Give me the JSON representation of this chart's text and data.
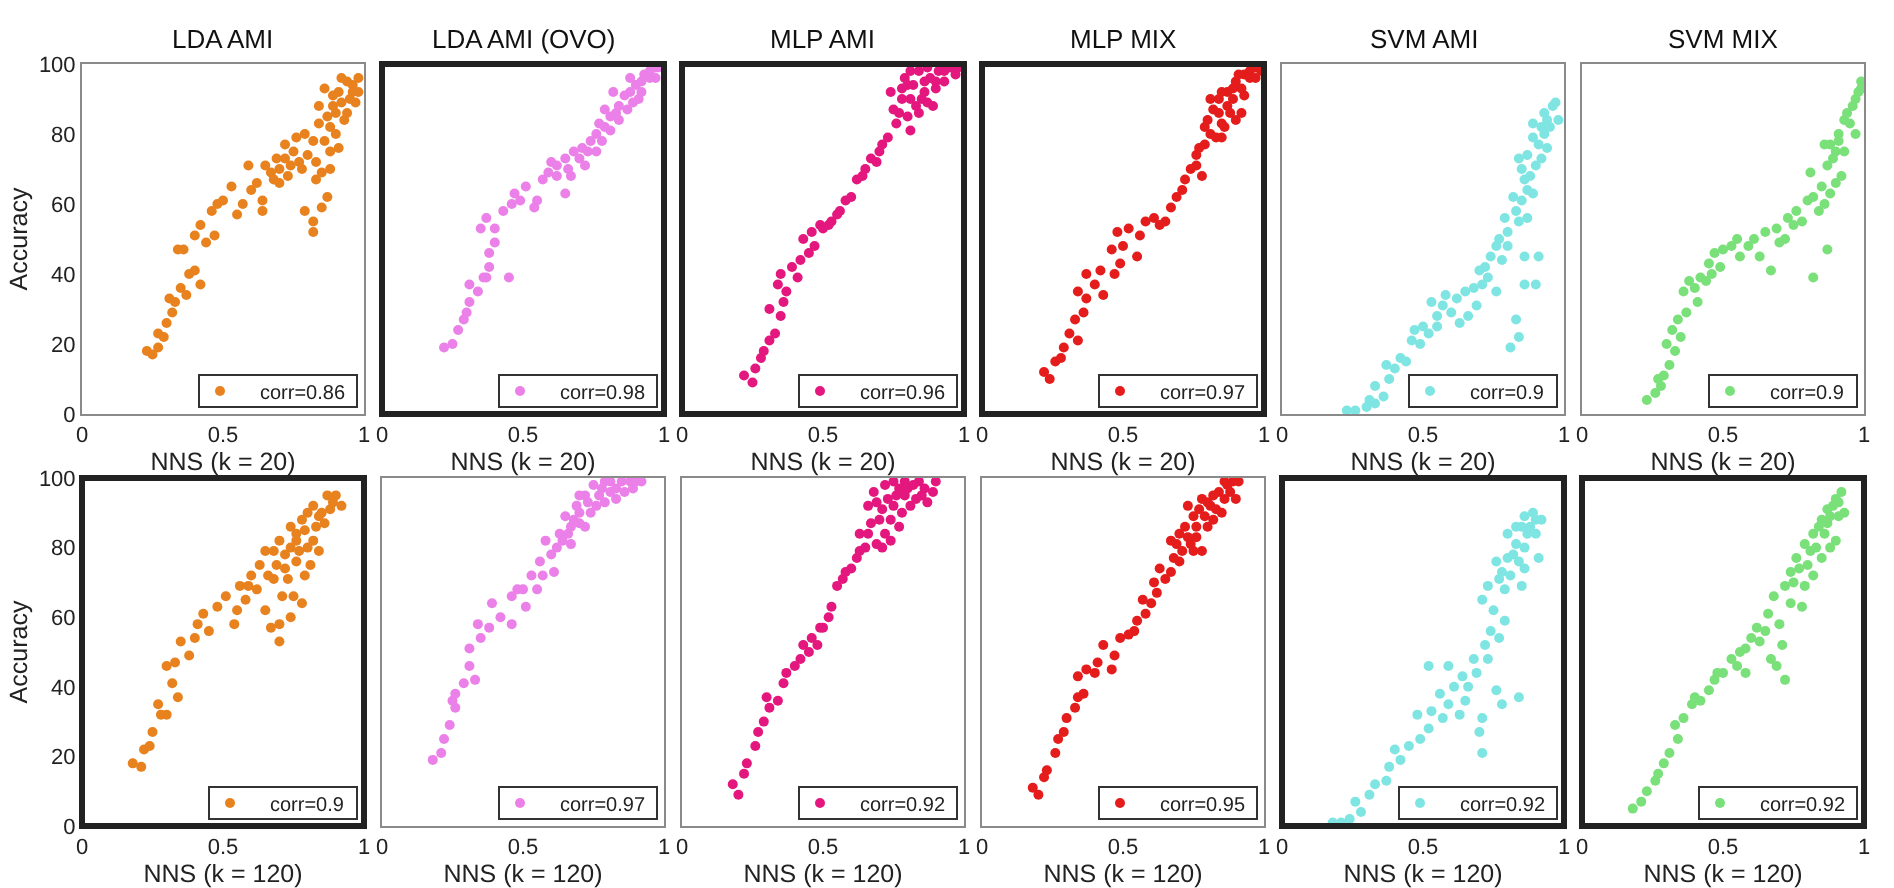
{
  "chart_data": [
    {
      "type": "scatter",
      "title": "LDA AMI",
      "xlabel": "NNS (k = 20)",
      "ylabel": "Accuracy",
      "xlim": [
        0,
        1
      ],
      "ylim": [
        0,
        100
      ],
      "xticks": [
        0,
        0.5,
        1
      ],
      "yticks": [
        0,
        20,
        40,
        60,
        80,
        100
      ],
      "legend": "bottom right",
      "marker": "circle",
      "series": [
        {
          "name": "corr=0.86",
          "color": "#e8821e",
          "x": [
            0.23,
            0.25,
            0.27,
            0.27,
            0.29,
            0.3,
            0.32,
            0.31,
            0.33,
            0.35,
            0.37,
            0.38,
            0.4,
            0.42,
            0.34,
            0.36,
            0.4,
            0.42,
            0.44,
            0.47,
            0.46,
            0.48,
            0.5,
            0.53,
            0.55,
            0.57,
            0.59,
            0.6,
            0.64,
            0.64,
            0.62,
            0.67,
            0.68,
            0.69,
            0.7,
            0.72,
            0.72,
            0.75,
            0.76,
            0.77,
            0.78,
            0.79,
            0.82,
            0.82,
            0.85,
            0.87,
            0.85,
            0.88,
            0.79,
            0.82,
            0.84,
            0.87,
            0.89,
            0.9,
            0.91,
            0.94,
            0.96,
            0.98,
            0.97,
            0.94,
            0.92,
            0.8,
            0.83,
            0.86,
            0.88,
            0.9,
            0.92,
            0.93,
            0.95,
            0.96,
            0.84,
            0.86,
            0.89,
            0.91,
            0.83,
            0.88,
            0.74,
            0.7,
            0.65,
            0.73,
            0.98
          ],
          "values": [
            18,
            17,
            19,
            23,
            22,
            26,
            29,
            33,
            32,
            36,
            34,
            40,
            41,
            37,
            47,
            47,
            51,
            54,
            49,
            51,
            58,
            60,
            61,
            65,
            57,
            60,
            71,
            64,
            61,
            58,
            66,
            69,
            67,
            73,
            70,
            73,
            77,
            75,
            79,
            72,
            70,
            58,
            55,
            52,
            59,
            62,
            69,
            75,
            80,
            78,
            83,
            85,
            88,
            80,
            92,
            95,
            94,
            92,
            89,
            86,
            96,
            74,
            72,
            78,
            82,
            86,
            89,
            84,
            90,
            92,
            88,
            93,
            91,
            76,
            67,
            70,
            71,
            66,
            71,
            68,
            96
          ]
        }
      ]
    },
    {
      "type": "scatter",
      "title": "LDA AMI (OVO)",
      "xlabel": "NNS (k = 20)",
      "xlim": [
        0,
        1
      ],
      "ylim": [
        0,
        100
      ],
      "xticks": [
        0,
        0.5,
        1
      ],
      "tick_labels": "x",
      "legend": "bottom right",
      "marker": "circle",
      "series": [
        {
          "name": "corr=0.98",
          "color": "#ea80e8",
          "x": [
            0.22,
            0.25,
            0.27,
            0.29,
            0.3,
            0.31,
            0.31,
            0.34,
            0.36,
            0.37,
            0.38,
            0.38,
            0.4,
            0.45,
            0.35,
            0.37,
            0.4,
            0.43,
            0.46,
            0.47,
            0.49,
            0.51,
            0.54,
            0.55,
            0.57,
            0.59,
            0.6,
            0.65,
            0.62,
            0.65,
            0.68,
            0.71,
            0.72,
            0.74,
            0.76,
            0.76,
            0.79,
            0.79,
            0.81,
            0.82,
            0.84,
            0.86,
            0.87,
            0.9,
            0.91,
            0.93,
            0.97,
            0.98,
            0.62,
            0.66,
            0.7,
            0.73,
            0.78,
            0.81,
            0.83,
            0.88,
            0.89,
            0.92,
            0.95,
            0.95,
            0.97,
            0.88,
            0.92,
            0.67,
            0.77,
            0.84
          ],
          "values": [
            19,
            20,
            24,
            27,
            29,
            32,
            37,
            35,
            39,
            39,
            42,
            46,
            49,
            39,
            53,
            56,
            53,
            58,
            60,
            63,
            61,
            65,
            59,
            61,
            67,
            69,
            72,
            63,
            68,
            73,
            75,
            76,
            71,
            78,
            75,
            80,
            82,
            87,
            85,
            92,
            88,
            91,
            87,
            94,
            90,
            97,
            99,
            99,
            71,
            70,
            73,
            75,
            78,
            81,
            86,
            92,
            89,
            95,
            96,
            98,
            96,
            96,
            92,
            68,
            83,
            84
          ]
        }
      ]
    },
    {
      "type": "scatter",
      "title": "MLP AMI",
      "xlabel": "NNS (k = 20)",
      "xlim": [
        0,
        1
      ],
      "ylim": [
        0,
        100
      ],
      "xticks": [
        0,
        0.5,
        1
      ],
      "tick_labels": "x",
      "legend": "bottom right",
      "marker": "circle",
      "series": [
        {
          "name": "corr=0.96",
          "color": "#e3177e",
          "x": [
            0.22,
            0.25,
            0.26,
            0.28,
            0.29,
            0.31,
            0.33,
            0.31,
            0.35,
            0.36,
            0.34,
            0.37,
            0.35,
            0.39,
            0.41,
            0.42,
            0.45,
            0.43,
            0.47,
            0.46,
            0.49,
            0.52,
            0.53,
            0.56,
            0.58,
            0.6,
            0.62,
            0.65,
            0.67,
            0.71,
            0.73,
            0.76,
            0.78,
            0.74,
            0.77,
            0.8,
            0.84,
            0.81,
            0.86,
            0.88,
            0.91,
            0.95,
            0.98,
            0.93,
            0.81,
            0.85,
            0.89,
            0.79,
            0.84,
            0.75,
            0.78,
            0.81,
            0.82,
            0.83,
            0.86,
            0.87,
            0.9,
            0.9,
            0.93,
            0.97,
            0.87,
            0.8,
            0.7,
            0.64,
            0.69,
            0.55,
            0.5
          ],
          "values": [
            11,
            9,
            13,
            16,
            18,
            21,
            23,
            30,
            28,
            32,
            37,
            35,
            40,
            42,
            39,
            44,
            46,
            50,
            48,
            52,
            54,
            54,
            55,
            58,
            61,
            62,
            67,
            70,
            73,
            77,
            79,
            83,
            90,
            92,
            86,
            85,
            86,
            90,
            92,
            96,
            98,
            99,
            99,
            95,
            81,
            90,
            88,
            96,
            98,
            87,
            93,
            98,
            94,
            88,
            95,
            89,
            93,
            95,
            98,
            97,
            99,
            94,
            75,
            68,
            72,
            57,
            53
          ]
        }
      ]
    },
    {
      "type": "scatter",
      "title": "MLP MIX",
      "xlabel": "NNS (k = 20)",
      "xlim": [
        0,
        1
      ],
      "ylim": [
        0,
        100
      ],
      "xticks": [
        0,
        0.5,
        1
      ],
      "tick_labels": "x",
      "legend": "bottom right",
      "marker": "circle",
      "series": [
        {
          "name": "corr=0.97",
          "color": "#e41c1c",
          "x": [
            0.22,
            0.24,
            0.26,
            0.28,
            0.29,
            0.31,
            0.34,
            0.33,
            0.36,
            0.34,
            0.37,
            0.4,
            0.43,
            0.37,
            0.42,
            0.47,
            0.46,
            0.49,
            0.5,
            0.55,
            0.56,
            0.48,
            0.52,
            0.61,
            0.65,
            0.67,
            0.69,
            0.72,
            0.74,
            0.78,
            0.76,
            0.79,
            0.81,
            0.85,
            0.79,
            0.84,
            0.87,
            0.81,
            0.87,
            0.9,
            0.93,
            0.97,
            0.86,
            0.92,
            0.93,
            0.9,
            0.8,
            0.82,
            0.84,
            0.85,
            0.89,
            0.89,
            0.92,
            0.91,
            0.95,
            0.95,
            0.97,
            0.99,
            0.88,
            0.83,
            0.85,
            0.76,
            0.77,
            0.71,
            0.58,
            0.63
          ],
          "values": [
            12,
            10,
            15,
            16,
            19,
            23,
            21,
            27,
            29,
            35,
            33,
            37,
            34,
            40,
            41,
            40,
            47,
            43,
            48,
            45,
            51,
            52,
            53,
            56,
            55,
            59,
            62,
            67,
            70,
            68,
            74,
            77,
            80,
            79,
            82,
            86,
            88,
            90,
            92,
            95,
            97,
            99,
            82,
            86,
            91,
            84,
            84,
            87,
            90,
            92,
            93,
            90,
            93,
            97,
            98,
            96,
            96,
            98,
            86,
            79,
            83,
            71,
            76,
            64,
            55,
            54
          ]
        }
      ]
    },
    {
      "type": "scatter",
      "title": "SVM AMI",
      "xlabel": "NNS (k = 20)",
      "xlim": [
        0,
        1
      ],
      "ylim": [
        0,
        100
      ],
      "xticks": [
        0,
        0.5,
        1
      ],
      "tick_labels": "x",
      "legend": "bottom right",
      "marker": "circle",
      "series": [
        {
          "name": "corr=0.9",
          "color": "#7fe5e2",
          "x": [
            0.23,
            0.26,
            0.3,
            0.33,
            0.31,
            0.36,
            0.33,
            0.38,
            0.37,
            0.4,
            0.42,
            0.44,
            0.46,
            0.49,
            0.53,
            0.57,
            0.6,
            0.63,
            0.66,
            0.69,
            0.65,
            0.71,
            0.73,
            0.76,
            0.72,
            0.78,
            0.77,
            0.8,
            0.81,
            0.84,
            0.83,
            0.86,
            0.9,
            0.91,
            0.86,
            0.83,
            0.85,
            0.86,
            0.89,
            0.9,
            0.91,
            0.89,
            0.93,
            0.94,
            0.96,
            0.97,
            0.98,
            0.92,
            0.84,
            0.87,
            0.79,
            0.76,
            0.52,
            0.55,
            0.85,
            0.87,
            0.88,
            0.92,
            0.93,
            0.95,
            0.94,
            0.89,
            0.87,
            0.82,
            0.84,
            0.8,
            0.74,
            0.7,
            0.68,
            0.62,
            0.58,
            0.55,
            0.5,
            0.47
          ],
          "values": [
            1,
            1,
            2,
            3,
            4,
            5,
            8,
            10,
            14,
            13,
            16,
            15,
            21,
            20,
            32,
            31,
            29,
            26,
            28,
            31,
            35,
            37,
            39,
            35,
            42,
            44,
            50,
            52,
            19,
            22,
            27,
            37,
            37,
            45,
            45,
            58,
            61,
            67,
            63,
            71,
            77,
            79,
            80,
            84,
            88,
            89,
            84,
            73,
            73,
            56,
            56,
            48,
            23,
            25,
            70,
            74,
            68,
            82,
            86,
            82,
            76,
            83,
            64,
            62,
            55,
            48,
            45,
            41,
            36,
            33,
            34,
            28,
            25,
            24
          ]
        }
      ]
    },
    {
      "type": "scatter",
      "title": "SVM MIX",
      "xlabel": "NNS (k = 20)",
      "xlim": [
        0,
        1
      ],
      "ylim": [
        0,
        100
      ],
      "xticks": [
        0,
        0.5,
        1
      ],
      "tick_labels": "x",
      "legend": "bottom right",
      "marker": "circle",
      "series": [
        {
          "name": "corr=0.9",
          "color": "#7ae07a",
          "x": [
            0.23,
            0.26,
            0.28,
            0.29,
            0.31,
            0.33,
            0.3,
            0.35,
            0.34,
            0.37,
            0.36,
            0.38,
            0.41,
            0.42,
            0.45,
            0.47,
            0.46,
            0.49,
            0.53,
            0.56,
            0.59,
            0.61,
            0.63,
            0.67,
            0.65,
            0.69,
            0.72,
            0.73,
            0.76,
            0.8,
            0.82,
            0.87,
            0.85,
            0.87,
            0.86,
            0.9,
            0.91,
            0.93,
            0.92,
            0.96,
            0.98,
            0.99,
            0.97,
            0.81,
            0.55,
            0.5,
            0.88,
            0.89,
            0.91,
            0.94,
            0.95,
            0.97,
            0.99,
            0.93,
            0.9,
            0.88,
            0.84,
            0.82,
            0.78,
            0.75,
            0.7,
            0.44,
            0.4,
            0.32,
            0.27,
            0.86
          ],
          "values": [
            4,
            6,
            8,
            11,
            14,
            18,
            20,
            22,
            27,
            29,
            35,
            38,
            32,
            39,
            43,
            46,
            40,
            42,
            48,
            45,
            48,
            50,
            45,
            41,
            52,
            53,
            50,
            56,
            58,
            61,
            39,
            47,
            65,
            71,
            77,
            75,
            80,
            84,
            68,
            88,
            92,
            95,
            80,
            69,
            50,
            47,
            77,
            73,
            78,
            86,
            83,
            90,
            93,
            75,
            66,
            63,
            58,
            62,
            55,
            54,
            49,
            38,
            36,
            24,
            10,
            60
          ]
        }
      ]
    },
    {
      "type": "scatter",
      "xlabel": "NNS (k = 120)",
      "ylabel": "Accuracy",
      "xlim": [
        0,
        1
      ],
      "ylim": [
        0,
        100
      ],
      "xticks": [
        0,
        0.5,
        1
      ],
      "yticks": [
        0,
        20,
        40,
        60,
        80,
        100
      ],
      "legend": "bottom right",
      "marker": "circle",
      "series": [
        {
          "name": "corr=0.9",
          "color": "#e8821e",
          "x": [
            0.18,
            0.21,
            0.22,
            0.24,
            0.25,
            0.28,
            0.27,
            0.3,
            0.32,
            0.34,
            0.3,
            0.33,
            0.35,
            0.38,
            0.4,
            0.41,
            0.43,
            0.45,
            0.48,
            0.54,
            0.55,
            0.51,
            0.56,
            0.6,
            0.63,
            0.65,
            0.67,
            0.7,
            0.7,
            0.74,
            0.75,
            0.78,
            0.65,
            0.7,
            0.74,
            0.76,
            0.78,
            0.82,
            0.85,
            0.87,
            0.9,
            0.92,
            0.82,
            0.81,
            0.84,
            0.72,
            0.68,
            0.77,
            0.58,
            0.66,
            0.69,
            0.72,
            0.74,
            0.76,
            0.79,
            0.8,
            0.83,
            0.84,
            0.86,
            0.88,
            0.89,
            0.8,
            0.76,
            0.73,
            0.62,
            0.59,
            0.79,
            0.71,
            0.68
          ],
          "values": [
            18,
            17,
            22,
            23,
            27,
            32,
            35,
            32,
            41,
            37,
            46,
            47,
            53,
            49,
            54,
            58,
            61,
            56,
            63,
            58,
            62,
            66,
            69,
            72,
            75,
            62,
            57,
            53,
            58,
            60,
            66,
            64,
            79,
            82,
            86,
            84,
            88,
            92,
            90,
            95,
            95,
            92,
            82,
            75,
            79,
            74,
            71,
            79,
            65,
            72,
            75,
            78,
            80,
            82,
            85,
            80,
            86,
            89,
            87,
            91,
            93,
            90,
            76,
            71,
            68,
            69,
            72,
            66,
            79
          ]
        }
      ]
    },
    {
      "type": "scatter",
      "xlabel": "NNS (k = 120)",
      "xlim": [
        0,
        1
      ],
      "ylim": [
        0,
        100
      ],
      "xticks": [
        0,
        0.5,
        1
      ],
      "tick_labels": "x",
      "legend": "bottom right",
      "marker": "circle",
      "series": [
        {
          "name": "corr=0.97",
          "color": "#ea80e8",
          "x": [
            0.18,
            0.21,
            0.22,
            0.24,
            0.26,
            0.26,
            0.25,
            0.29,
            0.31,
            0.33,
            0.31,
            0.35,
            0.38,
            0.34,
            0.42,
            0.39,
            0.46,
            0.48,
            0.51,
            0.55,
            0.53,
            0.56,
            0.6,
            0.58,
            0.63,
            0.67,
            0.65,
            0.69,
            0.72,
            0.75,
            0.79,
            0.81,
            0.85,
            0.88,
            0.92,
            0.67,
            0.72,
            0.76,
            0.61,
            0.46,
            0.62,
            0.64,
            0.66,
            0.68,
            0.7,
            0.7,
            0.73,
            0.74,
            0.77,
            0.78,
            0.81,
            0.83,
            0.86,
            0.89,
            0.9,
            0.83,
            0.79,
            0.7,
            0.57,
            0.5
          ],
          "values": [
            19,
            21,
            25,
            29,
            34,
            38,
            36,
            41,
            46,
            42,
            51,
            54,
            57,
            58,
            60,
            64,
            66,
            68,
            63,
            68,
            72,
            76,
            78,
            82,
            84,
            86,
            89,
            92,
            95,
            98,
            99,
            96,
            99,
            99,
            99,
            81,
            86,
            92,
            73,
            58,
            80,
            82,
            84,
            88,
            90,
            87,
            93,
            90,
            95,
            97,
            99,
            97,
            96,
            97,
            99,
            94,
            93,
            95,
            72,
            68
          ]
        }
      ]
    },
    {
      "type": "scatter",
      "xlabel": "NNS (k = 120)",
      "xlim": [
        0,
        1
      ],
      "ylim": [
        0,
        100
      ],
      "xticks": [
        0,
        0.5,
        1
      ],
      "tick_labels": "x",
      "legend": "bottom right",
      "marker": "circle",
      "series": [
        {
          "name": "corr=0.92",
          "color": "#e3177e",
          "x": [
            0.18,
            0.2,
            0.22,
            0.23,
            0.26,
            0.27,
            0.29,
            0.31,
            0.3,
            0.34,
            0.36,
            0.37,
            0.4,
            0.42,
            0.43,
            0.46,
            0.48,
            0.49,
            0.52,
            0.53,
            0.55,
            0.57,
            0.6,
            0.62,
            0.65,
            0.63,
            0.67,
            0.66,
            0.68,
            0.72,
            0.75,
            0.79,
            0.84,
            0.9,
            0.74,
            0.78,
            0.72,
            0.76,
            0.81,
            0.85,
            0.69,
            0.74,
            0.69,
            0.7,
            0.71,
            0.73,
            0.75,
            0.77,
            0.79,
            0.8,
            0.82,
            0.83,
            0.86,
            0.89,
            0.87,
            0.77,
            0.71,
            0.66,
            0.63,
            0.58,
            0.5,
            0.45
          ],
          "values": [
            12,
            9,
            15,
            18,
            23,
            27,
            30,
            34,
            37,
            36,
            41,
            44,
            46,
            48,
            52,
            54,
            52,
            57,
            60,
            63,
            69,
            71,
            74,
            77,
            80,
            84,
            87,
            92,
            96,
            98,
            99,
            99,
            99,
            99,
            88,
            90,
            84,
            95,
            92,
            95,
            81,
            82,
            93,
            88,
            91,
            94,
            92,
            97,
            95,
            97,
            98,
            94,
            97,
            96,
            93,
            86,
            80,
            84,
            79,
            73,
            57,
            50
          ]
        }
      ]
    },
    {
      "type": "scatter",
      "xlabel": "NNS (k = 120)",
      "xlim": [
        0,
        1
      ],
      "ylim": [
        0,
        100
      ],
      "xticks": [
        0,
        0.5,
        1
      ],
      "tick_labels": "x",
      "legend": "bottom right",
      "marker": "circle",
      "series": [
        {
          "name": "corr=0.95",
          "color": "#e41c1c",
          "x": [
            0.18,
            0.2,
            0.22,
            0.23,
            0.26,
            0.27,
            0.29,
            0.3,
            0.33,
            0.34,
            0.36,
            0.34,
            0.37,
            0.41,
            0.43,
            0.47,
            0.46,
            0.49,
            0.54,
            0.55,
            0.58,
            0.6,
            0.62,
            0.65,
            0.67,
            0.63,
            0.68,
            0.69,
            0.74,
            0.78,
            0.76,
            0.72,
            0.75,
            0.8,
            0.73,
            0.78,
            0.81,
            0.85,
            0.84,
            0.87,
            0.91,
            0.9,
            0.67,
            0.7,
            0.71,
            0.73,
            0.76,
            0.77,
            0.79,
            0.8,
            0.82,
            0.83,
            0.86,
            0.88,
            0.89,
            0.86,
            0.82,
            0.75,
            0.7,
            0.61,
            0.57,
            0.52,
            0.4
          ],
          "values": [
            11,
            9,
            14,
            16,
            21,
            25,
            27,
            31,
            34,
            37,
            38,
            43,
            45,
            47,
            52,
            49,
            45,
            54,
            56,
            59,
            61,
            64,
            67,
            71,
            73,
            74,
            77,
            81,
            81,
            79,
            83,
            86,
            89,
            86,
            92,
            94,
            92,
            90,
            96,
            98,
            99,
            94,
            82,
            84,
            79,
            83,
            86,
            91,
            89,
            93,
            95,
            91,
            94,
            96,
            99,
            99,
            88,
            79,
            76,
            70,
            65,
            55,
            44
          ]
        }
      ]
    },
    {
      "type": "scatter",
      "xlabel": "NNS (k = 120)",
      "xlim": [
        0,
        1
      ],
      "ylim": [
        0,
        100
      ],
      "xticks": [
        0,
        0.5,
        1
      ],
      "tick_labels": "x",
      "legend": "bottom right",
      "marker": "circle",
      "series": [
        {
          "name": "corr=0.92",
          "color": "#7fe5e2",
          "x": [
            0.18,
            0.21,
            0.24,
            0.28,
            0.26,
            0.31,
            0.33,
            0.37,
            0.38,
            0.42,
            0.45,
            0.49,
            0.52,
            0.53,
            0.57,
            0.59,
            0.63,
            0.65,
            0.66,
            0.7,
            0.71,
            0.71,
            0.69,
            0.73,
            0.76,
            0.78,
            0.84,
            0.77,
            0.79,
            0.71,
            0.73,
            0.77,
            0.76,
            0.8,
            0.83,
            0.8,
            0.85,
            0.86,
            0.89,
            0.9,
            0.91,
            0.92,
            0.59,
            0.52,
            0.85,
            0.78,
            0.79,
            0.81,
            0.82,
            0.84,
            0.86,
            0.87,
            0.88,
            0.9,
            0.83,
            0.86,
            0.75,
            0.74,
            0.72,
            0.68,
            0.64,
            0.61,
            0.56,
            0.48,
            0.4
          ],
          "values": [
            1,
            1,
            2,
            4,
            7,
            9,
            12,
            13,
            17,
            19,
            23,
            25,
            28,
            33,
            31,
            35,
            32,
            36,
            40,
            27,
            21,
            31,
            44,
            48,
            39,
            35,
            37,
            54,
            59,
            65,
            69,
            71,
            76,
            77,
            81,
            84,
            86,
            89,
            90,
            84,
            77,
            88,
            46,
            46,
            69,
            73,
            68,
            72,
            78,
            76,
            80,
            84,
            86,
            88,
            86,
            74,
            62,
            56,
            52,
            48,
            43,
            40,
            38,
            32,
            22
          ]
        }
      ]
    },
    {
      "type": "scatter",
      "xlabel": "NNS (k = 120)",
      "xlim": [
        0,
        1
      ],
      "ylim": [
        0,
        100
      ],
      "xticks": [
        0,
        0.5,
        1
      ],
      "tick_labels": "x",
      "legend": "bottom right",
      "marker": "circle",
      "series": [
        {
          "name": "corr=0.92",
          "color": "#7ae07a",
          "x": [
            0.18,
            0.21,
            0.23,
            0.26,
            0.27,
            0.29,
            0.31,
            0.34,
            0.33,
            0.36,
            0.39,
            0.42,
            0.45,
            0.47,
            0.5,
            0.53,
            0.55,
            0.58,
            0.6,
            0.62,
            0.63,
            0.67,
            0.69,
            0.72,
            0.71,
            0.66,
            0.68,
            0.72,
            0.74,
            0.76,
            0.79,
            0.79,
            0.82,
            0.85,
            0.87,
            0.9,
            0.92,
            0.93,
            0.9,
            0.85,
            0.78,
            0.58,
            0.75,
            0.77,
            0.8,
            0.81,
            0.83,
            0.84,
            0.86,
            0.87,
            0.88,
            0.89,
            0.91,
            0.91,
            0.88,
            0.82,
            0.74,
            0.7,
            0.65,
            0.56,
            0.48,
            0.4
          ],
          "values": [
            5,
            7,
            10,
            13,
            15,
            18,
            21,
            25,
            29,
            31,
            35,
            36,
            39,
            42,
            44,
            48,
            46,
            51,
            54,
            57,
            53,
            48,
            46,
            42,
            52,
            61,
            66,
            69,
            73,
            77,
            69,
            81,
            84,
            88,
            91,
            94,
            96,
            90,
            82,
            77,
            63,
            44,
            70,
            74,
            75,
            79,
            80,
            86,
            84,
            87,
            89,
            92,
            93,
            89,
            80,
            72,
            64,
            58,
            56,
            50,
            44,
            37
          ]
        }
      ]
    }
  ]
}
